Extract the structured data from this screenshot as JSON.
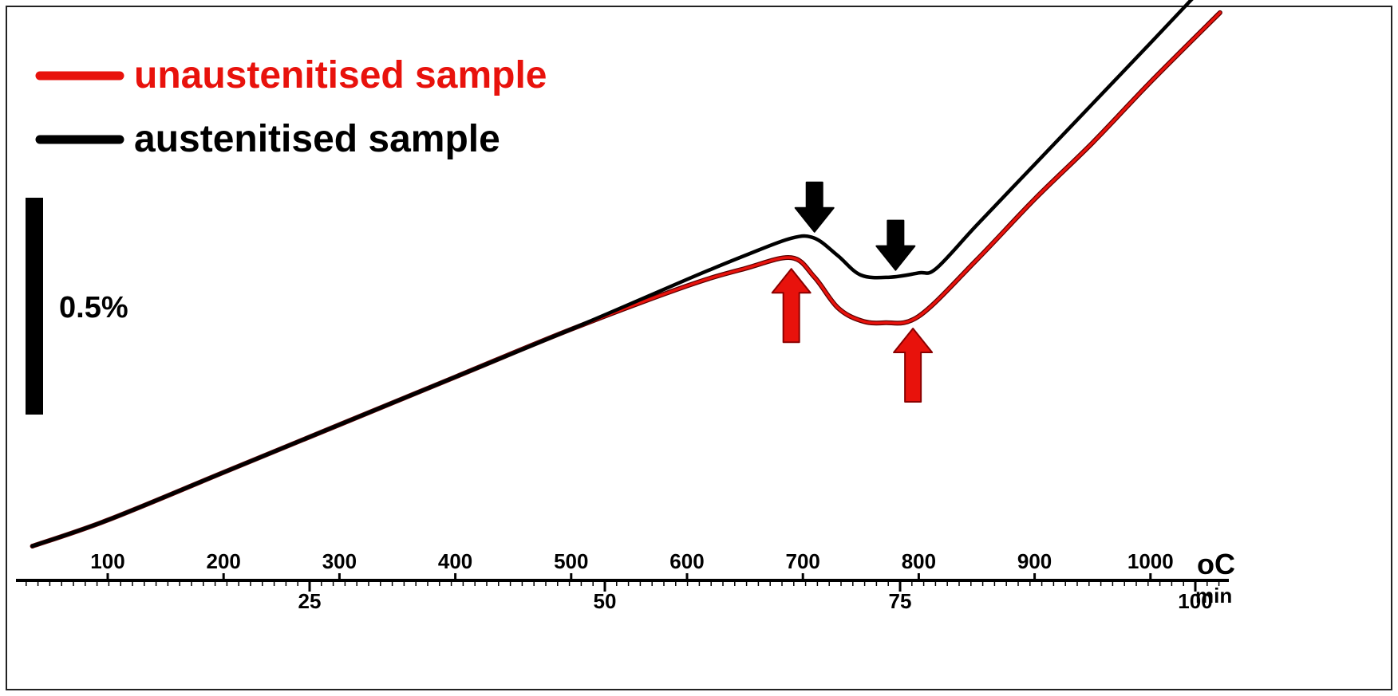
{
  "chart_data": {
    "type": "line",
    "title": "",
    "legend_position": "top-left",
    "scale_bar": {
      "label": "0.5%",
      "value_percent": 0.5
    },
    "x_axis_temperature": {
      "unit": "oC",
      "tick_labels": [
        "100",
        "200",
        "300",
        "400",
        "500",
        "600",
        "700",
        "800",
        "900",
        "1000"
      ],
      "tick_values": [
        100,
        200,
        300,
        400,
        500,
        600,
        700,
        800,
        900,
        1000
      ]
    },
    "x_axis_time": {
      "unit": "min",
      "tick_labels": [
        "25",
        "50",
        "75",
        "100"
      ],
      "tick_values": [
        25,
        50,
        75,
        100
      ]
    },
    "series": [
      {
        "name": "unaustenitised sample",
        "color": "#e8120c",
        "x": [
          35,
          100,
          200,
          300,
          400,
          500,
          600,
          650,
          690,
          710,
          730,
          750,
          770,
          800,
          850,
          900,
          950,
          1000,
          1060
        ],
        "y": [
          0.0,
          0.06,
          0.17,
          0.28,
          0.39,
          0.5,
          0.6,
          0.64,
          0.665,
          0.62,
          0.55,
          0.52,
          0.515,
          0.53,
          0.66,
          0.8,
          0.93,
          1.07,
          1.23
        ],
        "transitions": [
          690,
          795
        ]
      },
      {
        "name": "austenitised sample",
        "color": "#000000",
        "x": [
          35,
          100,
          200,
          300,
          400,
          500,
          600,
          650,
          690,
          710,
          730,
          750,
          775,
          800,
          815,
          850,
          900,
          950,
          1000,
          1060
        ],
        "y": [
          0.0,
          0.06,
          0.17,
          0.28,
          0.39,
          0.5,
          0.615,
          0.67,
          0.71,
          0.71,
          0.67,
          0.625,
          0.62,
          0.63,
          0.64,
          0.74,
          0.88,
          1.02,
          1.16,
          1.33
        ],
        "transitions": [
          710,
          780
        ]
      }
    ]
  }
}
